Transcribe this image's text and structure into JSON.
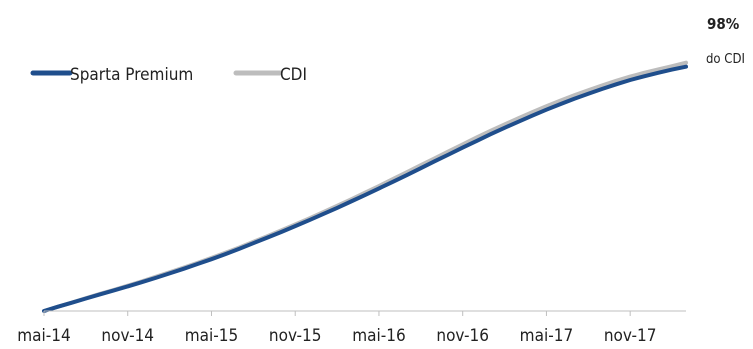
{
  "chart_data": {
    "type": "line",
    "title": "",
    "xlabel": "",
    "ylabel": "",
    "x_tick_labels": [
      "mai-14",
      "nov-14",
      "mai-15",
      "nov-15",
      "mai-16",
      "nov-16",
      "mai-17",
      "nov-17"
    ],
    "x": [
      0,
      1,
      2,
      3,
      4,
      5,
      6,
      7,
      8,
      9,
      10,
      11,
      12,
      13,
      14,
      15,
      16,
      17,
      18,
      19,
      20,
      21,
      22,
      23,
      24,
      25,
      26,
      27,
      28,
      29,
      30,
      31,
      32,
      33,
      34,
      35,
      36,
      37,
      38,
      39,
      40,
      41,
      42,
      43,
      44,
      45,
      46
    ],
    "x_ticks": [
      0,
      6,
      12,
      18,
      24,
      30,
      36,
      42
    ],
    "xlim": [
      0,
      46
    ],
    "ylim": [
      0,
      100
    ],
    "grid": false,
    "legend_position": "top-left",
    "series": [
      {
        "name": "Sparta Premium",
        "color": "#1f4e8c",
        "values": [
          0,
          1.6,
          3.1,
          4.7,
          6.2,
          7.7,
          9.2,
          10.8,
          12.4,
          14.1,
          15.8,
          17.6,
          19.4,
          21.3,
          23.3,
          25.4,
          27.5,
          29.6,
          31.8,
          34.0,
          36.3,
          38.6,
          41.0,
          43.4,
          45.9,
          48.4,
          50.9,
          53.5,
          56.1,
          58.6,
          61.2,
          63.7,
          66.2,
          68.6,
          70.9,
          73.2,
          75.4,
          77.5,
          79.5,
          81.4,
          83.2,
          84.9,
          86.5,
          87.9,
          89.2,
          90.4,
          91.5
        ]
      },
      {
        "name": "CDI",
        "color": "#bdbdbd",
        "values": [
          0,
          1.6,
          3.2,
          4.8,
          6.4,
          7.9,
          9.5,
          11.1,
          12.8,
          14.5,
          16.2,
          18.0,
          19.9,
          21.8,
          23.8,
          25.9,
          28.0,
          30.2,
          32.4,
          34.7,
          37.0,
          39.4,
          41.8,
          44.3,
          46.8,
          49.4,
          52.0,
          54.6,
          57.2,
          59.8,
          62.4,
          65.0,
          67.5,
          69.9,
          72.2,
          74.5,
          76.7,
          78.8,
          80.8,
          82.7,
          84.5,
          86.2,
          87.8,
          89.2,
          90.5,
          91.7,
          93.0
        ]
      }
    ],
    "annotation": {
      "value_label": "98%",
      "sub_label": "do CDI"
    }
  }
}
